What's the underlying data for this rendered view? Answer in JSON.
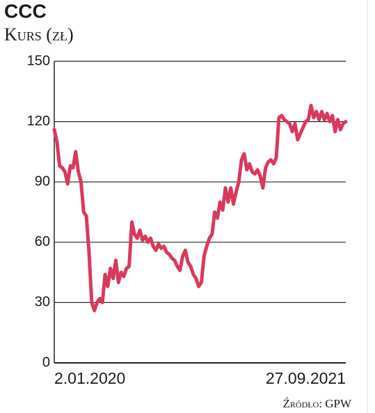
{
  "chart_data": {
    "type": "line",
    "title": "CCC",
    "subtitle": "Kurs (zł)",
    "source": "Źródło: GPW",
    "categories": [
      "2.01.2020",
      null,
      null,
      null,
      null,
      null,
      null,
      null,
      null,
      null,
      null,
      null,
      null,
      null,
      null,
      null,
      null,
      null,
      null,
      null,
      null,
      null,
      null,
      null,
      null,
      null,
      null,
      null,
      null,
      null,
      null,
      null,
      null,
      null,
      null,
      null,
      null,
      null,
      null,
      null,
      null,
      null,
      null,
      null,
      null,
      null,
      null,
      null,
      null,
      null,
      null,
      null,
      null,
      null,
      null,
      null,
      null,
      null,
      null,
      null,
      null,
      null,
      null,
      null,
      null,
      null,
      null,
      null,
      null,
      null,
      null,
      null,
      null,
      null,
      null,
      null,
      null,
      null,
      null,
      null,
      null,
      null,
      null,
      null,
      null,
      null,
      null,
      null,
      null,
      null,
      null,
      null,
      null,
      null,
      null,
      null,
      null,
      null,
      null,
      null,
      null,
      null,
      null,
      null,
      null,
      null,
      null,
      null,
      null,
      "27.09.2021"
    ],
    "values": [
      116,
      110,
      98,
      97,
      95,
      89,
      98,
      97,
      105,
      95,
      90,
      75,
      73,
      55,
      30,
      26,
      30,
      32,
      30,
      44,
      38,
      47,
      42,
      51,
      40,
      45,
      43,
      47,
      48,
      70,
      64,
      62,
      66,
      61,
      63,
      60,
      62,
      58,
      56,
      59,
      57,
      58,
      55,
      54,
      52,
      51,
      48,
      46,
      53,
      56,
      50,
      48,
      44,
      42,
      38,
      40,
      53,
      58,
      62,
      64,
      75,
      72,
      80,
      76,
      87,
      80,
      87,
      79,
      85,
      90,
      101,
      104,
      96,
      99,
      95,
      94,
      96,
      93,
      87,
      97,
      100,
      101,
      99,
      102,
      122,
      123,
      121,
      120,
      119,
      115,
      119,
      111,
      114,
      117,
      120,
      121,
      128,
      122,
      125,
      121,
      125,
      121,
      124,
      120,
      123,
      115,
      121,
      116,
      119,
      120
    ],
    "color": "#d83a5c",
    "ylim": [
      0,
      150
    ],
    "yticks": [
      0,
      30,
      60,
      90,
      120,
      150
    ],
    "grid": true
  }
}
